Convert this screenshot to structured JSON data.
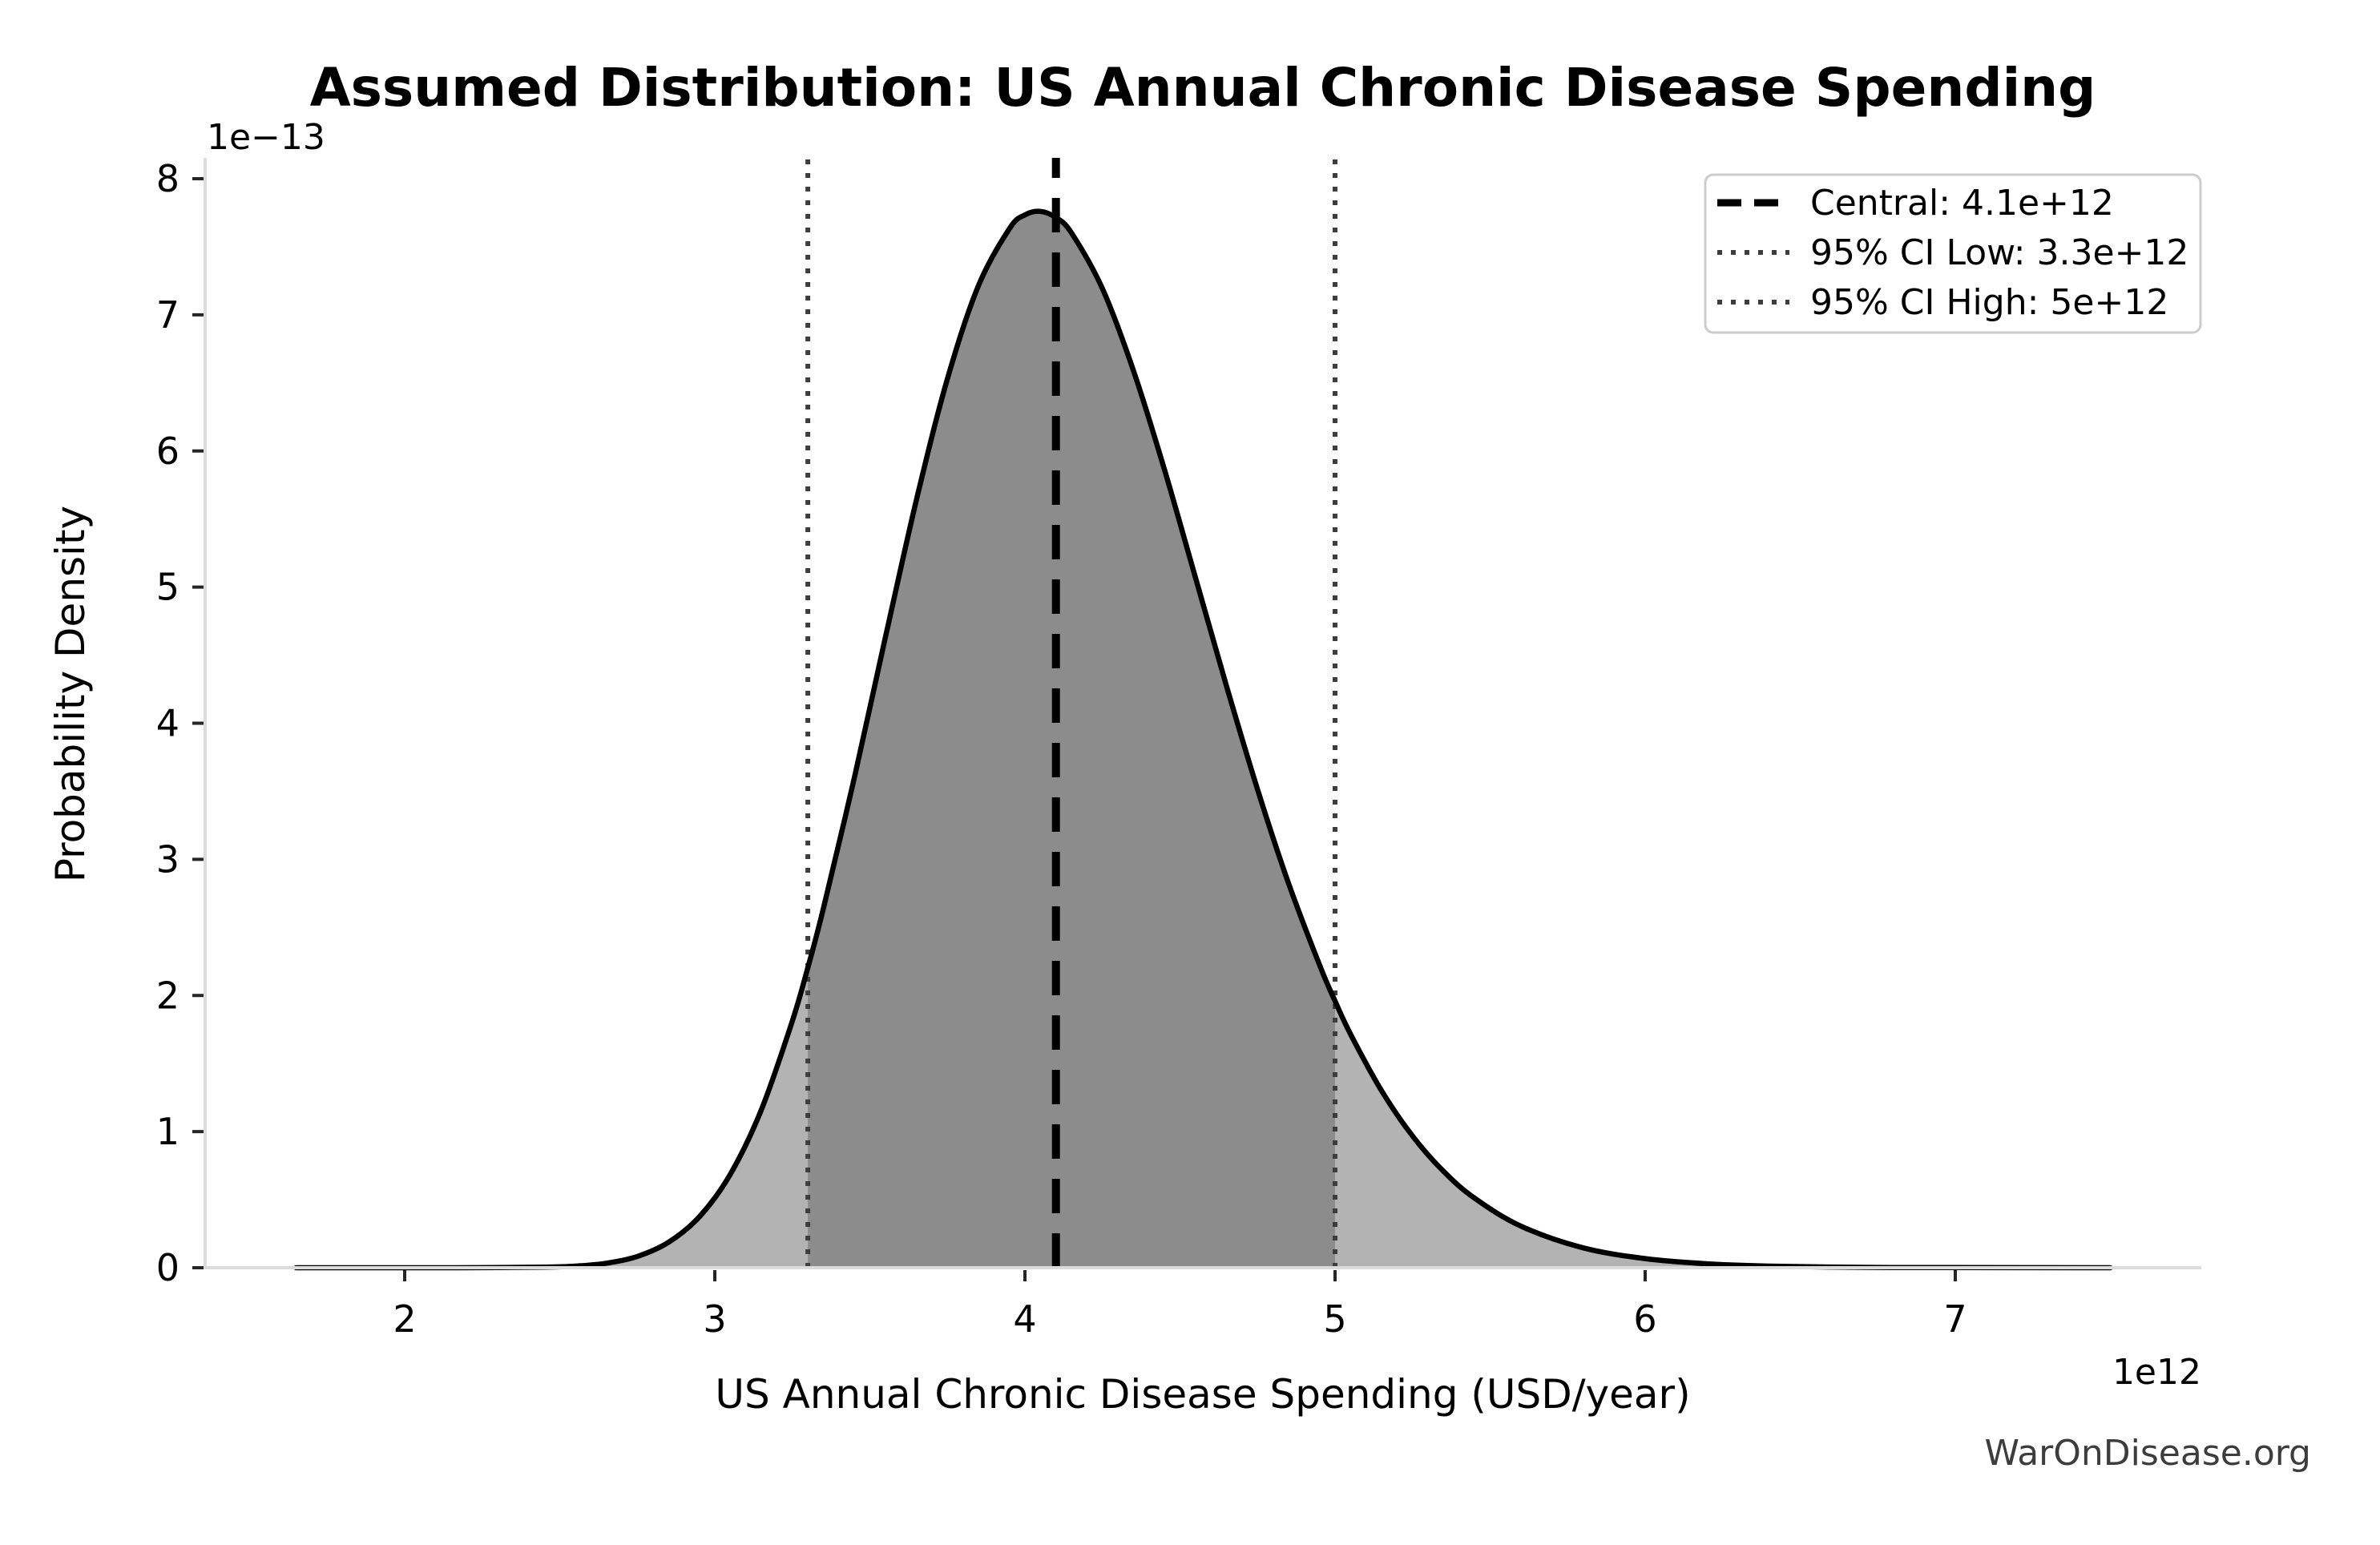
{
  "figure": {
    "watermark": "WarOnDisease.org",
    "background": "#ffffff"
  },
  "chart_data": {
    "type": "area",
    "title": "Assumed Distribution: US Annual Chronic Disease Spending",
    "xlabel": "US Annual Chronic Disease Spending (USD/year)",
    "ylabel": "Probability Density",
    "x_offset_label": "1e12",
    "y_offset_label": "1e−13",
    "x_ticks": [
      2,
      3,
      4,
      5,
      6,
      7
    ],
    "y_ticks": [
      0,
      1,
      2,
      3,
      4,
      5,
      6,
      7,
      8
    ],
    "xlim": [
      1.36,
      7.79
    ],
    "ylim": [
      0,
      8.15
    ],
    "grid": false,
    "legend_position": "upper right",
    "units_x": "1e12 USD/year",
    "units_y": "1e-13 probability density",
    "central": {
      "label": "Central: 4.1e+12",
      "x": 4.1
    },
    "ci_low": {
      "label": "95% CI Low: 3.3e+12",
      "x": 3.3
    },
    "ci_high": {
      "label": "95% CI High: 5e+12",
      "x": 5.0
    },
    "peak": {
      "x": 4.05,
      "y": 7.76
    },
    "curve": {
      "x": [
        1.65,
        1.9,
        2.1,
        2.3,
        2.45,
        2.55,
        2.65,
        2.75,
        2.85,
        2.95,
        3.05,
        3.15,
        3.25,
        3.3,
        3.35,
        3.45,
        3.55,
        3.65,
        3.75,
        3.85,
        3.95,
        4.0,
        4.05,
        4.1,
        4.15,
        4.25,
        4.35,
        4.45,
        4.55,
        4.65,
        4.75,
        4.85,
        4.95,
        5.0,
        5.05,
        5.15,
        5.25,
        5.35,
        5.45,
        5.6,
        5.8,
        6.0,
        6.2,
        6.4,
        6.7,
        7.0,
        7.5
      ],
      "y": [
        0,
        0,
        0,
        0.001,
        0.004,
        0.012,
        0.033,
        0.083,
        0.186,
        0.374,
        0.686,
        1.159,
        1.813,
        2.204,
        2.639,
        3.601,
        4.629,
        5.638,
        6.53,
        7.214,
        7.633,
        7.734,
        7.76,
        7.714,
        7.602,
        7.192,
        6.591,
        5.862,
        5.07,
        4.272,
        3.514,
        2.825,
        2.224,
        1.959,
        1.716,
        1.3,
        0.967,
        0.708,
        0.511,
        0.305,
        0.146,
        0.067,
        0.029,
        0.012,
        0.003,
        0.001,
        0
      ]
    },
    "colors": {
      "fill_light": "#b3b3b3",
      "fill_dark": "#8c8c8c",
      "curve_line": "#000000",
      "central_line": "#000000",
      "ci_line": "#3d3d3d",
      "spine": "#dcdcdc",
      "tick": "#262626",
      "legend_border": "#cccccc",
      "watermark": "#3d3d3d"
    }
  },
  "legend": {
    "entries": [
      {
        "label": "Central: 4.1e+12",
        "style": "dashed",
        "color": "#000000"
      },
      {
        "label": "95% CI Low: 3.3e+12",
        "style": "dotted",
        "color": "#3d3d3d"
      },
      {
        "label": "95% CI High: 5e+12",
        "style": "dotted",
        "color": "#3d3d3d"
      }
    ]
  }
}
